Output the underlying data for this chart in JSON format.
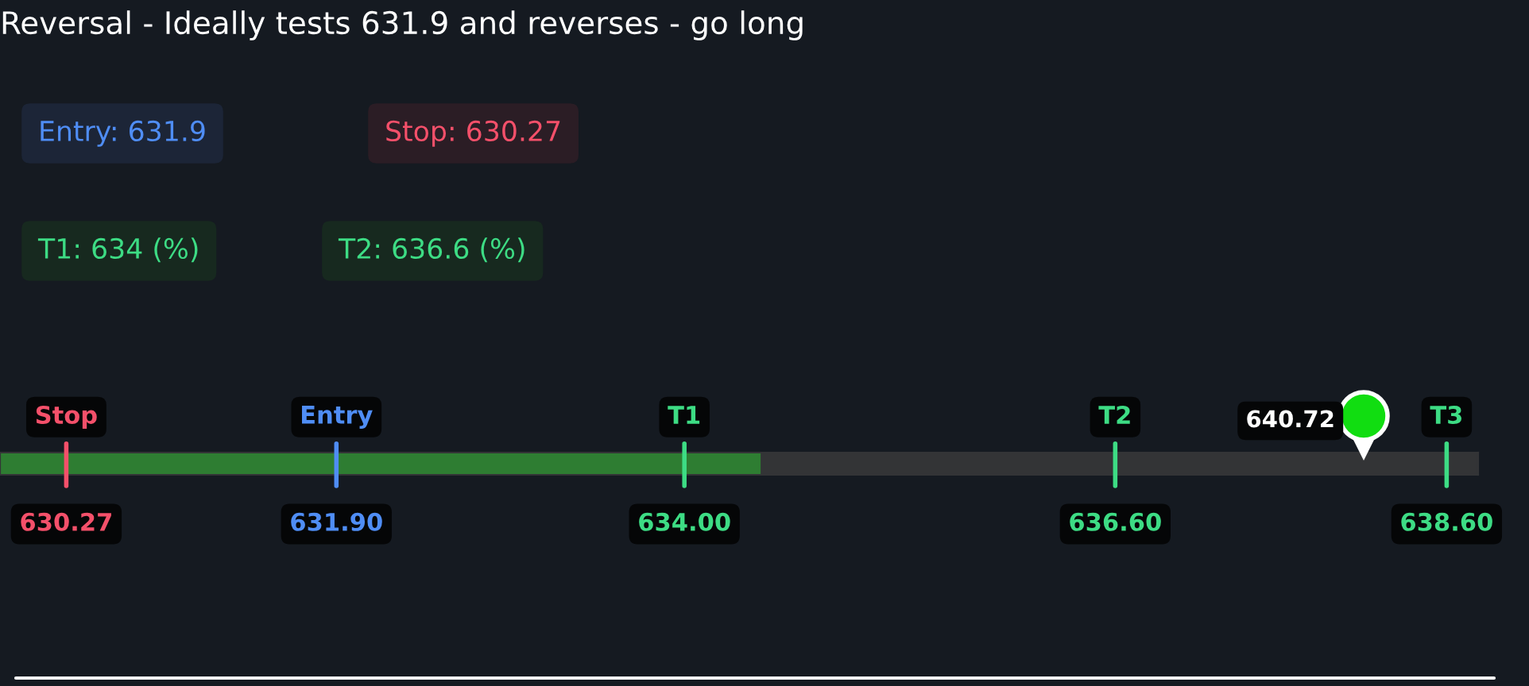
{
  "chart_data": {
    "type": "bar",
    "orientation": "horizontal",
    "title": "Reversal - Ideally tests 631.9 and reverses - go long",
    "categories": [
      null
    ],
    "values": [
      4.59
    ],
    "base": [
      629.87
    ],
    "color": "#2e7d32",
    "annotations": [
      "Entry: 631.9",
      "Stop: 630.27",
      "T1: 634 (%)",
      "T2: 636.6 (%)",
      "640.72"
    ],
    "xlim": [
      629.87,
      638.79
    ],
    "xticks": [
      630.27,
      {
        "value": 631.9,
        "label": "631.90"
      },
      {
        "value": 634,
        "label": "634.00"
      },
      {
        "value": 636.6,
        "label": "636.60"
      },
      {
        "value": 638.6,
        "label": "638.60"
      }
    ],
    "ref_lines": [
      {
        "axis": "x",
        "value": 630.27,
        "label": "Stop",
        "color": "#f4506a"
      },
      {
        "axis": "x",
        "value": 631.9,
        "label": "Entry",
        "color": "#4f8df5"
      },
      {
        "axis": "x",
        "value": 634,
        "label": "T1",
        "color": "#3ddc84"
      },
      {
        "axis": "x",
        "value": 636.6,
        "label": "T2",
        "color": "#3ddc84"
      },
      {
        "axis": "x",
        "value": 638.6,
        "label": "T3",
        "color": "#3ddc84"
      }
    ]
  }
}
